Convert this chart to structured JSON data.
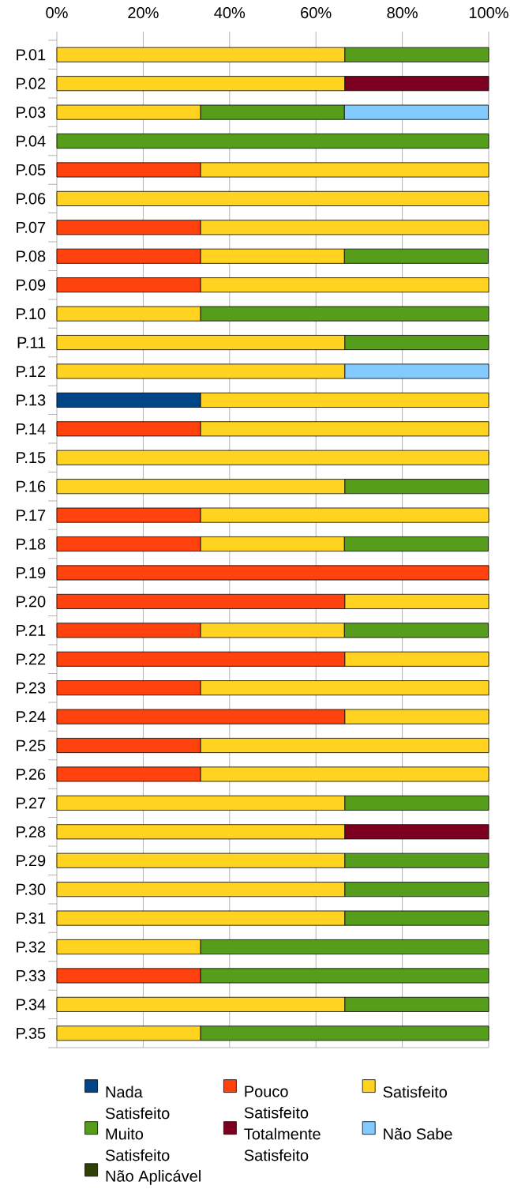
{
  "chart_data": {
    "type": "bar",
    "orientation": "horizontal",
    "stacked": true,
    "categories": [
      "P.01",
      "P.02",
      "P.03",
      "P.04",
      "P.05",
      "P.06",
      "P.07",
      "P.08",
      "P.09",
      "P.10",
      "P.11",
      "P.12",
      "P.13",
      "P.14",
      "P.15",
      "P.16",
      "P.17",
      "P.18",
      "P.19",
      "P.20",
      "P.21",
      "P.22",
      "P.23",
      "P.24",
      "P.25",
      "P.26",
      "P.27",
      "P.28",
      "P.29",
      "P.30",
      "P.31",
      "P.32",
      "P.33",
      "P.34",
      "P.35"
    ],
    "series": [
      {
        "name": "Nada Satisfeito",
        "color": "#004586",
        "values": [
          null,
          null,
          null,
          null,
          null,
          null,
          null,
          null,
          null,
          null,
          null,
          null,
          33.3,
          null,
          null,
          null,
          null,
          null,
          null,
          null,
          null,
          null,
          null,
          null,
          null,
          null,
          null,
          null,
          null,
          null,
          null,
          null,
          null,
          null,
          null
        ]
      },
      {
        "name": "Pouco Satisfeito",
        "color": "#ff420e",
        "values": [
          null,
          null,
          null,
          null,
          33.3,
          null,
          33.3,
          33.3,
          33.3,
          null,
          null,
          null,
          null,
          33.3,
          null,
          null,
          33.3,
          33.3,
          100,
          66.7,
          33.3,
          66.7,
          33.3,
          66.7,
          33.3,
          33.3,
          null,
          null,
          null,
          null,
          null,
          null,
          33.3,
          null,
          null
        ]
      },
      {
        "name": "Satisfeito",
        "color": "#ffd320",
        "values": [
          66.7,
          66.7,
          33.3,
          null,
          66.7,
          100,
          66.7,
          33.3,
          66.7,
          33.3,
          66.7,
          66.7,
          66.7,
          66.7,
          100,
          66.7,
          66.7,
          33.3,
          null,
          33.3,
          33.3,
          33.3,
          66.7,
          33.3,
          66.7,
          66.7,
          66.7,
          66.7,
          66.7,
          66.7,
          66.7,
          33.3,
          null,
          66.7,
          33.3
        ]
      },
      {
        "name": "Muito Satisfeito",
        "color": "#579d1c",
        "values": [
          33.3,
          null,
          33.3,
          100,
          null,
          null,
          null,
          33.3,
          null,
          66.7,
          33.3,
          null,
          null,
          null,
          null,
          33.3,
          null,
          33.3,
          null,
          null,
          33.3,
          null,
          null,
          null,
          null,
          null,
          33.3,
          null,
          33.3,
          33.3,
          33.3,
          66.7,
          66.7,
          33.3,
          66.7
        ]
      },
      {
        "name": "Totalmente Satisfeito",
        "color": "#7e0021",
        "values": [
          null,
          33.3,
          null,
          null,
          null,
          null,
          null,
          null,
          null,
          null,
          null,
          null,
          null,
          null,
          null,
          null,
          null,
          null,
          null,
          null,
          null,
          null,
          null,
          null,
          null,
          null,
          null,
          33.3,
          null,
          null,
          null,
          null,
          null,
          null,
          null
        ]
      },
      {
        "name": "Não Sabe",
        "color": "#83caff",
        "values": [
          null,
          null,
          33.3,
          null,
          null,
          null,
          null,
          null,
          null,
          null,
          null,
          33.3,
          null,
          null,
          null,
          null,
          null,
          null,
          null,
          null,
          null,
          null,
          null,
          null,
          null,
          null,
          null,
          null,
          null,
          null,
          null,
          null,
          null,
          null,
          null
        ]
      },
      {
        "name": "Não Aplicável",
        "color": "#314004",
        "values": [
          null,
          null,
          null,
          null,
          null,
          null,
          null,
          null,
          null,
          null,
          null,
          null,
          null,
          null,
          null,
          null,
          null,
          null,
          null,
          null,
          null,
          null,
          null,
          null,
          null,
          null,
          null,
          null,
          null,
          null,
          null,
          null,
          null,
          null,
          null
        ]
      }
    ],
    "xlim": [
      0,
      100
    ],
    "xticks": [
      {
        "value": 0,
        "label": "0%"
      },
      {
        "value": 20,
        "label": "20%"
      },
      {
        "value": 40,
        "label": "40%"
      },
      {
        "value": 60,
        "label": "60%"
      },
      {
        "value": 80,
        "label": "80%"
      },
      {
        "value": 100,
        "label": "100%"
      }
    ],
    "grid": "x",
    "legend": "bottom"
  }
}
